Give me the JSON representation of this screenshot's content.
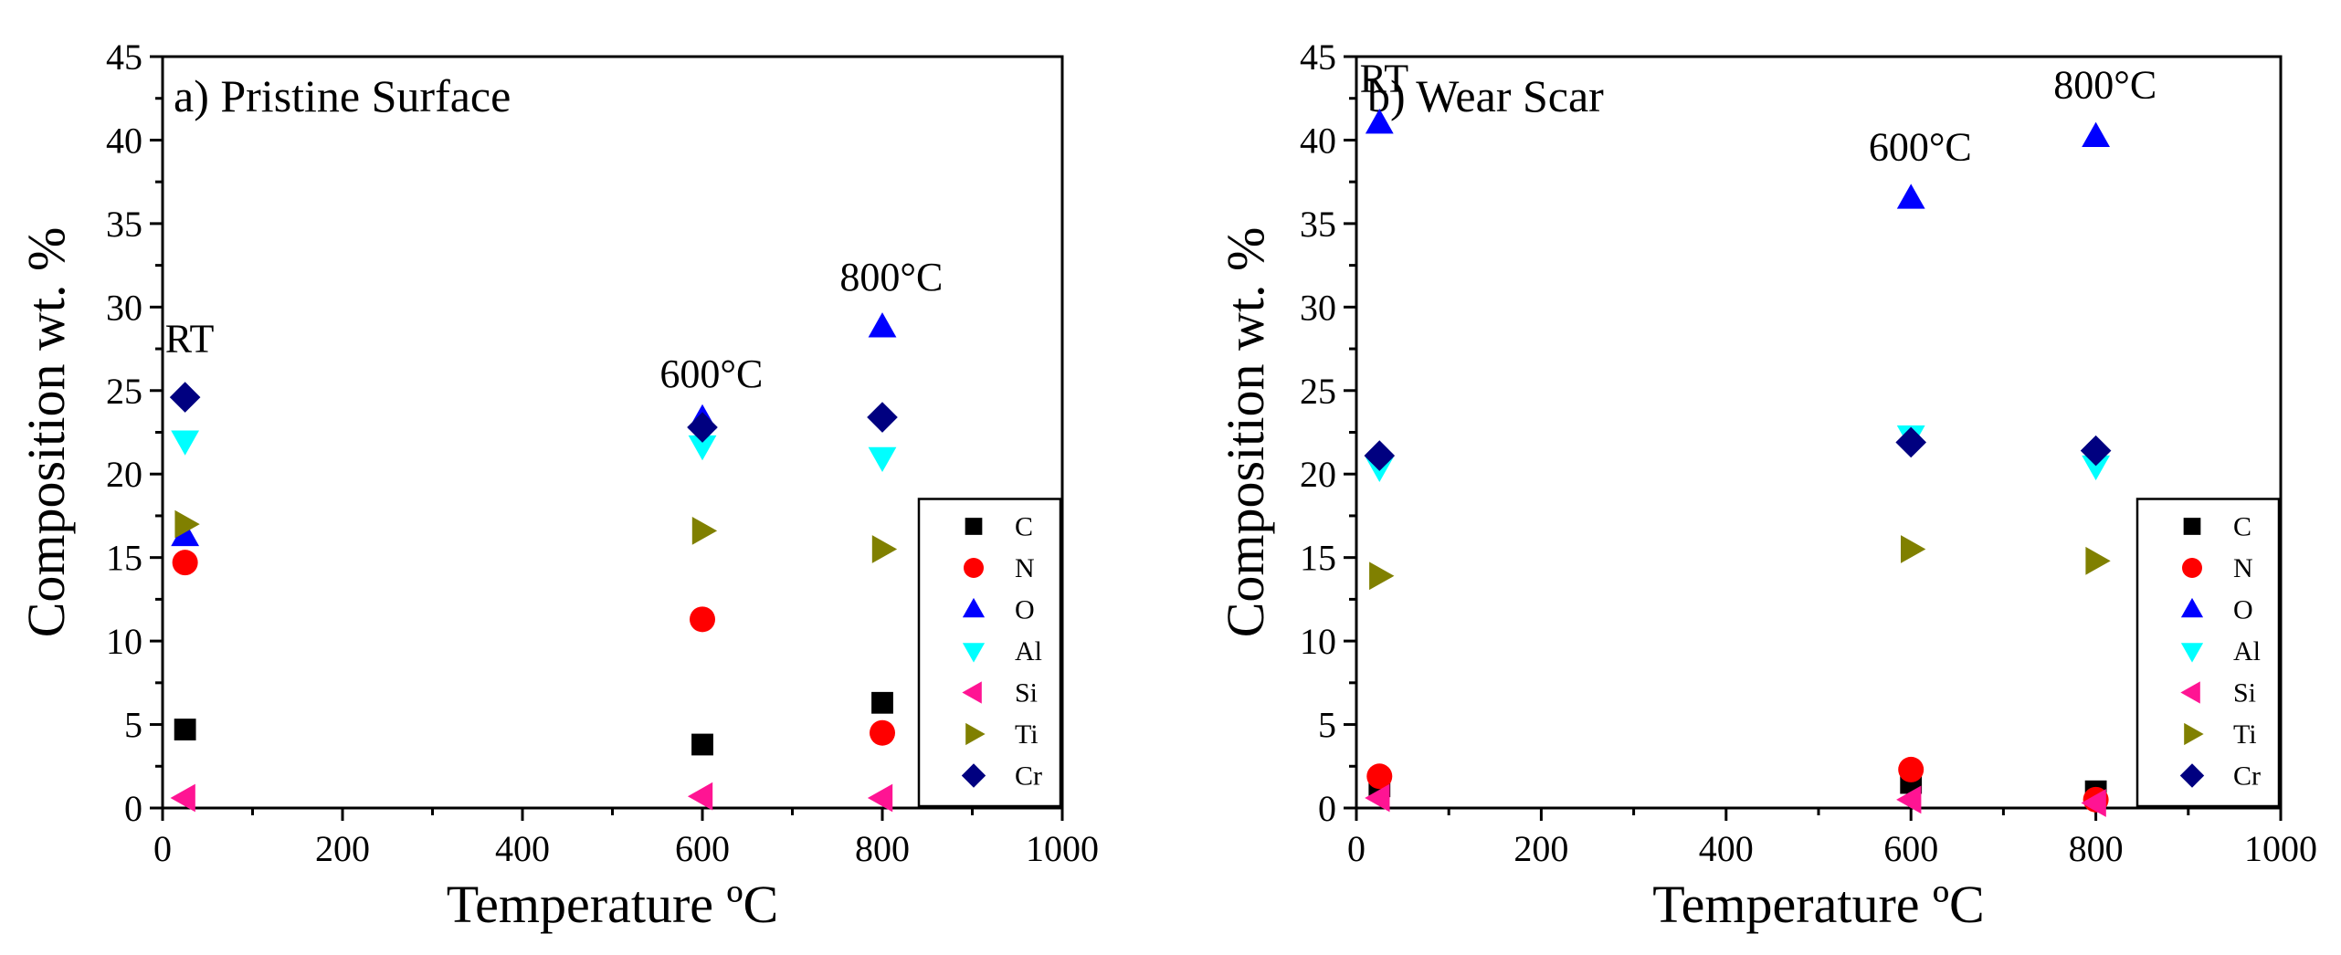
{
  "chart_data": [
    {
      "type": "scatter",
      "panel_title": "a) Pristine Surface",
      "xlabel": "Temperature ºC",
      "ylabel": "Composition wt. %",
      "xlim": [
        0,
        1000
      ],
      "ylim": [
        0,
        45
      ],
      "xticks": [
        "0",
        "200",
        "400",
        "600",
        "800",
        "1000"
      ],
      "yticks": [
        "0",
        "5",
        "10",
        "15",
        "20",
        "25",
        "30",
        "35",
        "40",
        "45"
      ],
      "legend_position": "bottom-right",
      "annotations": [
        {
          "text": "RT",
          "x": 30,
          "y": 27.3
        },
        {
          "text": "600°C",
          "x": 610,
          "y": 25.2
        },
        {
          "text": "800°C",
          "x": 810,
          "y": 31.0
        }
      ],
      "series": [
        {
          "name": "C",
          "marker": "square",
          "color": "#000000",
          "points": [
            [
              25,
              4.7
            ],
            [
              600,
              3.8
            ],
            [
              800,
              6.3
            ]
          ]
        },
        {
          "name": "N",
          "marker": "circle",
          "color": "#ff0000",
          "points": [
            [
              25,
              14.7
            ],
            [
              600,
              11.3
            ],
            [
              800,
              4.5
            ]
          ]
        },
        {
          "name": "O",
          "marker": "triangle-up",
          "color": "#0000ff",
          "points": [
            [
              25,
              16.3
            ],
            [
              600,
              23.3
            ],
            [
              800,
              28.8
            ]
          ]
        },
        {
          "name": "Al",
          "marker": "triangle-down",
          "color": "#00ffff",
          "points": [
            [
              25,
              22.0
            ],
            [
              600,
              21.7
            ],
            [
              800,
              21.0
            ]
          ]
        },
        {
          "name": "Si",
          "marker": "triangle-left",
          "color": "#ff1493",
          "points": [
            [
              25,
              0.6
            ],
            [
              600,
              0.7
            ],
            [
              800,
              0.6
            ]
          ]
        },
        {
          "name": "Ti",
          "marker": "triangle-right",
          "color": "#808000",
          "points": [
            [
              25,
              17.0
            ],
            [
              600,
              16.6
            ],
            [
              800,
              15.5
            ]
          ]
        },
        {
          "name": "Cr",
          "marker": "diamond",
          "color": "#000080",
          "points": [
            [
              25,
              24.6
            ],
            [
              600,
              22.8
            ],
            [
              800,
              23.4
            ]
          ]
        }
      ]
    },
    {
      "type": "scatter",
      "panel_title": "b) Wear Scar",
      "xlabel": "Temperature ºC",
      "ylabel": "Composition wt. %",
      "xlim": [
        0,
        1000
      ],
      "ylim": [
        0,
        45
      ],
      "xticks": [
        "0",
        "200",
        "400",
        "600",
        "800",
        "1000"
      ],
      "yticks": [
        "0",
        "5",
        "10",
        "15",
        "20",
        "25",
        "30",
        "35",
        "40",
        "45"
      ],
      "legend_position": "bottom-right",
      "annotations": [
        {
          "text": "RT",
          "x": 30,
          "y": 42.9
        },
        {
          "text": "600°C",
          "x": 610,
          "y": 38.8
        },
        {
          "text": "800°C",
          "x": 810,
          "y": 42.5
        }
      ],
      "series": [
        {
          "name": "C",
          "marker": "square",
          "color": "#000000",
          "points": [
            [
              25,
              1.3
            ],
            [
              600,
              1.5
            ],
            [
              800,
              1.0
            ]
          ]
        },
        {
          "name": "N",
          "marker": "circle",
          "color": "#ff0000",
          "points": [
            [
              25,
              1.9
            ],
            [
              600,
              2.3
            ],
            [
              800,
              0.5
            ]
          ]
        },
        {
          "name": "O",
          "marker": "triangle-up",
          "color": "#0000ff",
          "points": [
            [
              25,
              41.0
            ],
            [
              600,
              36.5
            ],
            [
              800,
              40.2
            ]
          ]
        },
        {
          "name": "Al",
          "marker": "triangle-down",
          "color": "#00ffff",
          "points": [
            [
              25,
              20.4
            ],
            [
              600,
              22.3
            ],
            [
              800,
              20.5
            ]
          ]
        },
        {
          "name": "Si",
          "marker": "triangle-left",
          "color": "#ff1493",
          "points": [
            [
              25,
              0.6
            ],
            [
              600,
              0.5
            ],
            [
              800,
              0.3
            ]
          ]
        },
        {
          "name": "Ti",
          "marker": "triangle-right",
          "color": "#808000",
          "points": [
            [
              25,
              13.9
            ],
            [
              600,
              15.5
            ],
            [
              800,
              14.8
            ]
          ]
        },
        {
          "name": "Cr",
          "marker": "diamond",
          "color": "#000080",
          "points": [
            [
              25,
              21.1
            ],
            [
              600,
              21.9
            ],
            [
              800,
              21.4
            ]
          ]
        }
      ]
    }
  ]
}
